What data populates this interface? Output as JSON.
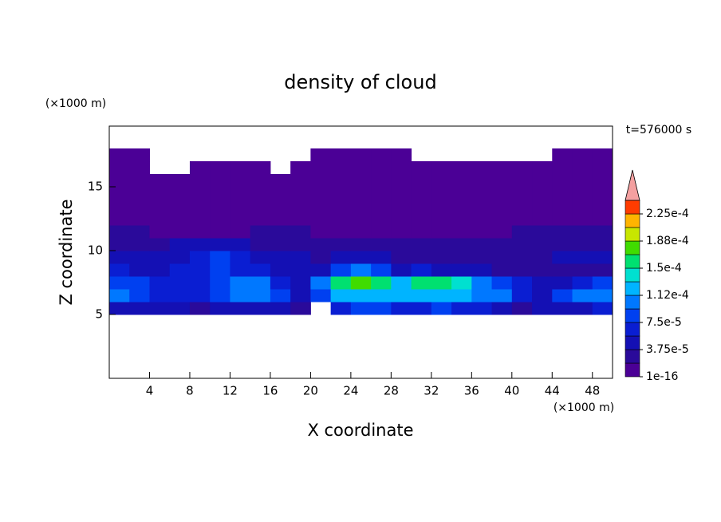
{
  "chart_data": {
    "type": "contour",
    "title": "density of cloud",
    "xlabel": "X coordinate",
    "ylabel": "Z coordinate",
    "x_unit": "(×1000 m)",
    "y_unit": "(×1000 m)",
    "time_label": "t=576000 s",
    "xlim": [
      0,
      50
    ],
    "ylim": [
      0,
      19.75
    ],
    "xticks": [
      4,
      8,
      12,
      16,
      20,
      24,
      28,
      32,
      36,
      40,
      44,
      48
    ],
    "yticks": [
      5,
      10,
      15
    ],
    "x_edges": [
      0,
      2,
      4,
      6,
      8,
      10,
      12,
      14,
      16,
      18,
      20,
      22,
      24,
      26,
      28,
      30,
      32,
      34,
      36,
      38,
      40,
      42,
      44,
      46,
      48,
      50
    ],
    "z_edges": [
      5,
      6,
      7,
      8,
      9,
      10,
      11,
      12,
      13,
      14,
      15,
      16,
      17,
      18
    ],
    "z": [
      [
        4e-05,
        5e-05,
        4e-05,
        4e-05,
        3e-05,
        4e-05,
        4e-05,
        5e-05,
        4e-05,
        3e-05,
        null,
        7e-05,
        8e-05,
        8e-05,
        7e-05,
        7e-05,
        8e-05,
        7e-05,
        6e-05,
        5e-05,
        3e-05,
        4e-05,
        5e-05,
        5e-05,
        6e-05
      ],
      [
        0.00011,
        9e-05,
        7e-05,
        6e-05,
        6e-05,
        8e-05,
        0.0001,
        0.00011,
        8e-05,
        4e-05,
        8e-05,
        0.00012,
        0.00013,
        0.00013,
        0.00012,
        0.00013,
        0.00013,
        0.00012,
        0.00011,
        0.0001,
        6e-05,
        4e-05,
        9e-05,
        0.0001,
        0.00011
      ],
      [
        9e-05,
        8e-05,
        7e-05,
        6e-05,
        7e-05,
        9e-05,
        0.0001,
        0.0001,
        7e-05,
        4e-05,
        0.0001,
        0.00016,
        0.00017,
        0.00016,
        0.00013,
        0.00015,
        0.00016,
        0.00014,
        0.00011,
        8e-05,
        6e-05,
        4e-05,
        5e-05,
        6e-05,
        8e-05
      ],
      [
        6e-05,
        5e-05,
        5e-05,
        6e-05,
        7e-05,
        8e-05,
        7e-05,
        6e-05,
        5e-05,
        4e-05,
        4e-05,
        9e-05,
        0.0001,
        9e-05,
        5e-05,
        7e-05,
        5e-05,
        4e-05,
        4e-05,
        3e-05,
        3e-05,
        3e-05,
        3e-05,
        3e-05,
        3e-05
      ],
      [
        5e-05,
        5e-05,
        4e-05,
        5e-05,
        7e-05,
        8e-05,
        7e-05,
        5e-05,
        4e-05,
        4e-05,
        3e-05,
        4e-05,
        4e-05,
        4e-05,
        3e-05,
        3e-05,
        3e-05,
        3e-05,
        3e-05,
        3e-05,
        3e-05,
        3e-05,
        4e-05,
        4e-05,
        4e-05
      ],
      [
        3e-05,
        3e-05,
        3e-05,
        4e-05,
        5e-05,
        5e-05,
        4e-05,
        3e-05,
        3e-05,
        3e-05,
        2e-05,
        2e-05,
        2e-05,
        2e-05,
        2e-05,
        2e-05,
        2e-05,
        2e-05,
        2e-05,
        2e-05,
        2e-05,
        3e-05,
        3e-05,
        3e-05,
        3e-05
      ],
      [
        2e-05,
        2e-05,
        1e-05,
        1e-05,
        1e-05,
        1e-05,
        1e-05,
        2e-05,
        2e-05,
        2e-05,
        1e-05,
        1e-05,
        1e-05,
        1e-05,
        1e-05,
        1e-05,
        1e-05,
        1e-05,
        1e-05,
        1e-05,
        2e-05,
        2e-05,
        2e-05,
        2e-05,
        2e-05
      ],
      [
        1e-06,
        1e-06,
        1e-06,
        1e-06,
        1e-06,
        1e-06,
        1e-06,
        1e-06,
        1e-06,
        1e-06,
        1e-06,
        1e-06,
        1e-06,
        1e-06,
        1e-06,
        1e-06,
        1e-06,
        1e-06,
        1e-06,
        1e-06,
        1e-06,
        1e-06,
        1e-06,
        1e-06,
        1e-06
      ],
      [
        1e-06,
        1e-06,
        1e-06,
        1e-06,
        1e-06,
        1e-06,
        1e-06,
        1e-06,
        1e-06,
        1e-06,
        1e-06,
        1e-06,
        1e-06,
        1e-06,
        1e-06,
        1e-06,
        1e-06,
        1e-06,
        1e-06,
        1e-06,
        1e-06,
        1e-06,
        1e-06,
        1e-06,
        1e-06
      ],
      [
        1e-06,
        1e-06,
        1e-06,
        1e-06,
        1e-06,
        1e-06,
        1e-06,
        1e-06,
        1e-06,
        1e-06,
        1e-06,
        1e-06,
        1e-06,
        1e-06,
        1e-06,
        1e-06,
        1e-06,
        1e-06,
        1e-06,
        1e-06,
        1e-06,
        1e-06,
        1e-06,
        1e-06,
        1e-06
      ],
      [
        1e-06,
        1e-06,
        1e-06,
        1e-06,
        1e-06,
        1e-06,
        1e-06,
        1e-06,
        1e-06,
        1e-06,
        1e-06,
        1e-06,
        1e-06,
        1e-06,
        1e-06,
        1e-06,
        1e-06,
        1e-06,
        1e-06,
        1e-06,
        1e-06,
        1e-06,
        1e-06,
        1e-06,
        1e-06
      ],
      [
        1e-06,
        1e-06,
        null,
        null,
        1e-06,
        1e-06,
        1e-06,
        1e-06,
        null,
        1e-06,
        1e-06,
        1e-06,
        1e-06,
        1e-06,
        1e-06,
        1e-06,
        1e-06,
        1e-06,
        1e-06,
        1e-06,
        1e-06,
        1e-06,
        1e-06,
        1e-06,
        1e-06
      ],
      [
        1e-06,
        1e-06,
        null,
        null,
        null,
        null,
        null,
        null,
        null,
        null,
        1e-06,
        1e-06,
        1e-06,
        1e-06,
        1e-06,
        null,
        null,
        null,
        null,
        null,
        null,
        null,
        1e-06,
        1e-06,
        1e-06
      ]
    ],
    "levels": [
      1e-16,
      1.875e-05,
      3.75e-05,
      5.625e-05,
      7.5e-05,
      9.375e-05,
      0.0001125,
      0.00013125,
      0.00015,
      0.00016875,
      0.0001875,
      0.00020625,
      0.000225,
      0.00024375
    ],
    "colors": [
      "#4b0096",
      "#2a0a9a",
      "#1410b4",
      "#0a1ed2",
      "#0040f0",
      "#0078ff",
      "#00b4ff",
      "#00e0d0",
      "#00e070",
      "#40dc00",
      "#c8e600",
      "#ffb400",
      "#ff3c00"
    ],
    "extend_color": "#f4a0a0",
    "colorbar_ticks": [
      {
        "value": 1e-16,
        "label": "1e-16"
      },
      {
        "value": 3.75e-05,
        "label": "3.75e-5"
      },
      {
        "value": 7.5e-05,
        "label": "7.5e-5"
      },
      {
        "value": 0.0001125,
        "label": "1.12e-4"
      },
      {
        "value": 0.00015,
        "label": "1.5e-4"
      },
      {
        "value": 0.0001875,
        "label": "1.88e-4"
      },
      {
        "value": 0.000225,
        "label": "2.25e-4"
      }
    ]
  }
}
